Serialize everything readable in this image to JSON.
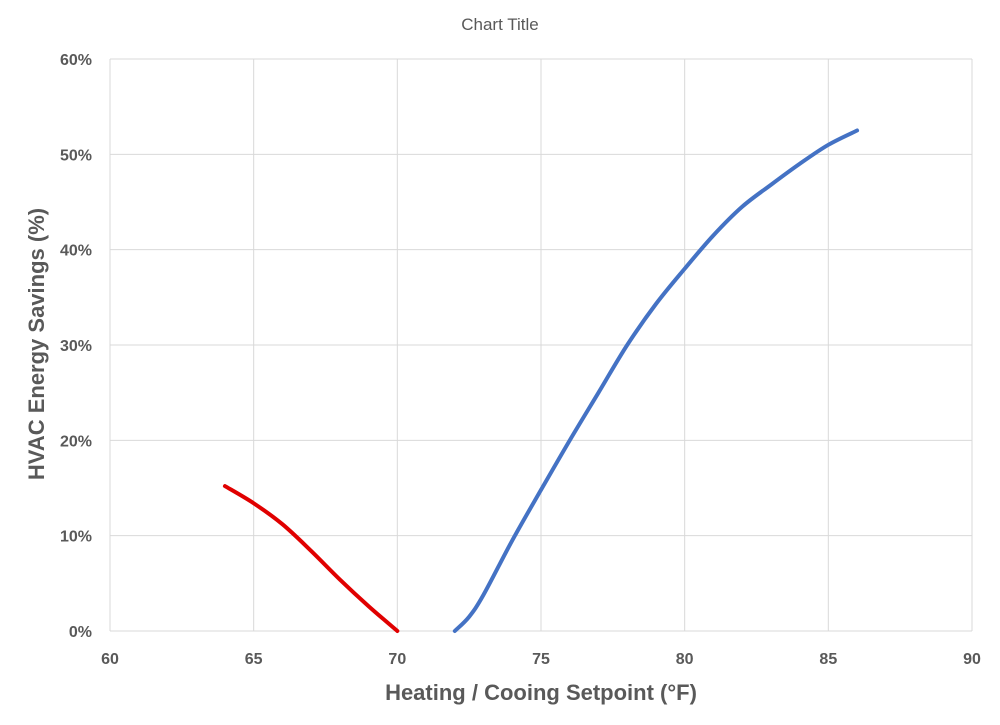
{
  "chart_data": {
    "type": "line",
    "title": "Chart Title",
    "xlabel": "Heating / Cooing Setpoint (°F)",
    "ylabel": "HVAC Energy Savings (%)",
    "xlim": [
      60,
      90
    ],
    "ylim": [
      0,
      0.6
    ],
    "x_ticks": [
      60,
      65,
      70,
      75,
      80,
      85,
      90
    ],
    "x_tick_labels": [
      "60",
      "65",
      "70",
      "75",
      "80",
      "85",
      "90"
    ],
    "y_ticks": [
      0,
      0.1,
      0.2,
      0.3,
      0.4,
      0.5,
      0.6
    ],
    "y_tick_labels": [
      "0%",
      "10%",
      "20%",
      "30%",
      "40%",
      "50%",
      "60%"
    ],
    "grid": true,
    "legend": false,
    "series": [
      {
        "color": "#e00000",
        "points": [
          [
            64,
            0.152
          ],
          [
            65,
            0.134
          ],
          [
            66,
            0.112
          ],
          [
            67,
            0.084
          ],
          [
            68,
            0.054
          ],
          [
            69,
            0.026
          ],
          [
            70,
            0.0
          ]
        ]
      },
      {
        "color": "#4472c4",
        "points": [
          [
            72,
            0.0
          ],
          [
            72.5,
            0.015
          ],
          [
            73,
            0.038
          ],
          [
            74,
            0.095
          ],
          [
            75,
            0.148
          ],
          [
            76,
            0.2
          ],
          [
            77,
            0.25
          ],
          [
            78,
            0.3
          ],
          [
            79,
            0.343
          ],
          [
            80,
            0.38
          ],
          [
            81,
            0.415
          ],
          [
            82,
            0.445
          ],
          [
            83,
            0.468
          ],
          [
            84,
            0.49
          ],
          [
            85,
            0.51
          ],
          [
            86,
            0.525
          ]
        ]
      }
    ]
  }
}
